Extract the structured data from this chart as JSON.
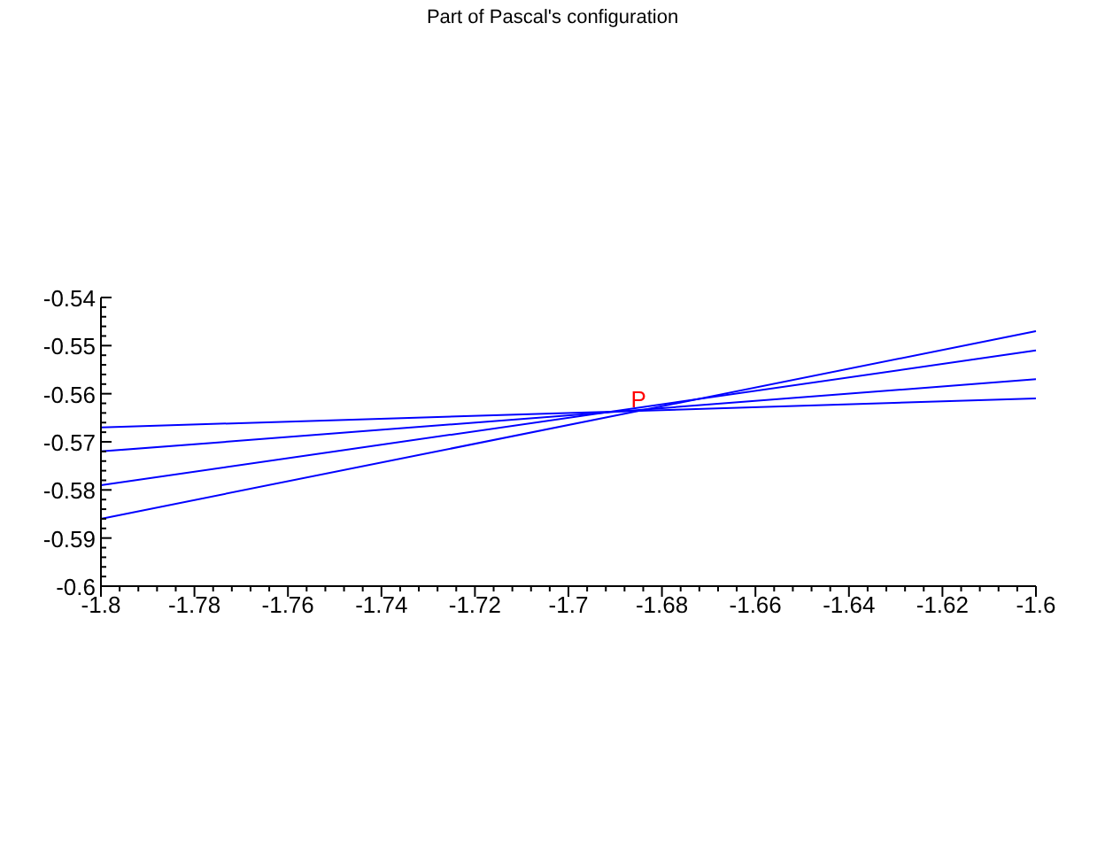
{
  "chart_data": {
    "type": "line",
    "title": "Part of Pascal's configuration",
    "xlim": [
      -1.8,
      -1.6
    ],
    "xticks": [
      -1.8,
      -1.78,
      -1.76,
      -1.74,
      -1.72,
      -1.7,
      -1.68,
      -1.66,
      -1.64,
      -1.62,
      -1.6
    ],
    "ylim": [
      -0.6,
      -0.54
    ],
    "yticks": [
      -0.6,
      -0.59,
      -0.58,
      -0.57,
      -0.56,
      -0.55,
      -0.54
    ],
    "grid": false,
    "marker": "none",
    "line_style": "solid",
    "x": [
      -1.8,
      -1.6
    ],
    "series": [
      {
        "color": "#0000ff",
        "values": [
          -0.567,
          -0.561
        ]
      },
      {
        "color": "#0000ff",
        "values": [
          -0.572,
          -0.557
        ]
      },
      {
        "color": "#0000ff",
        "values": [
          -0.579,
          -0.551
        ]
      },
      {
        "color": "#0000ff",
        "values": [
          -0.586,
          -0.547
        ]
      }
    ],
    "annotations": [
      {
        "text": "P",
        "x": -1.685,
        "y": -0.564
      }
    ]
  }
}
